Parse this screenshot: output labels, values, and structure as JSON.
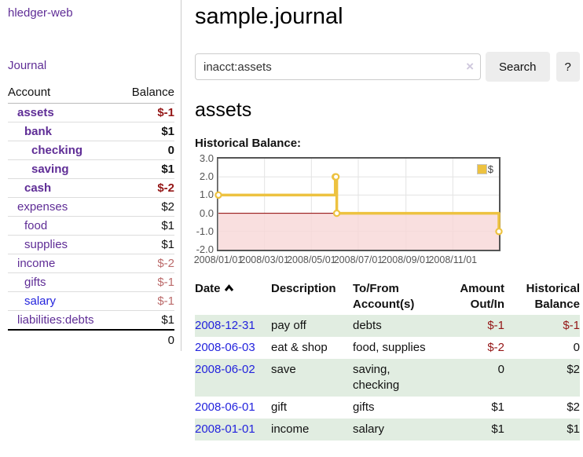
{
  "app": {
    "title": "hledger-web"
  },
  "sidebar": {
    "journal_link": "Journal",
    "headers": {
      "account": "Account",
      "balance": "Balance"
    },
    "rows": [
      {
        "account": "assets",
        "balance": "$-1"
      },
      {
        "account": "bank",
        "balance": "$1"
      },
      {
        "account": "checking",
        "balance": "0"
      },
      {
        "account": "saving",
        "balance": "$1"
      },
      {
        "account": "cash",
        "balance": "$-2"
      },
      {
        "account": "expenses",
        "balance": "$2"
      },
      {
        "account": "food",
        "balance": "$1"
      },
      {
        "account": "supplies",
        "balance": "$1"
      },
      {
        "account": "income",
        "balance": "$-2"
      },
      {
        "account": "gifts",
        "balance": "$-1"
      },
      {
        "account": "salary",
        "balance": "$-1"
      },
      {
        "account": "liabilities:debts",
        "balance": "$1"
      }
    ],
    "total": "0"
  },
  "main": {
    "title": "sample.journal",
    "search": {
      "value": "inacct:assets",
      "clear_icon": "×",
      "button_label": "Search",
      "help_label": "?"
    },
    "account_heading": "assets",
    "chart_heading": "Historical Balance:"
  },
  "chart_data": {
    "type": "line",
    "step": true,
    "title": "Historical Balance",
    "series": [
      {
        "name": "$",
        "color": "#edc240",
        "points": [
          [
            "2008-01-01",
            1
          ],
          [
            "2008-06-01",
            2
          ],
          [
            "2008-06-02",
            2
          ],
          [
            "2008-06-03",
            0
          ],
          [
            "2008-12-31",
            -1
          ]
        ]
      }
    ],
    "ylim": [
      -2,
      3
    ],
    "yticks": [
      {
        "label": "3.0",
        "value": 3
      },
      {
        "label": "2.0",
        "value": 2
      },
      {
        "label": "1.0",
        "value": 1
      },
      {
        "label": "0.0",
        "value": 0
      },
      {
        "label": "-1.0",
        "value": -1
      },
      {
        "label": "-2.0",
        "value": -2
      }
    ],
    "xticks": [
      {
        "label": "2008/01/01",
        "date": "2008-01-01"
      },
      {
        "label": "2008/03/01",
        "date": "2008-03-01"
      },
      {
        "label": "2008/05/01",
        "date": "2008-05-01"
      },
      {
        "label": "2008/07/01",
        "date": "2008-07-01"
      },
      {
        "label": "2008/09/01",
        "date": "2008-09-01"
      },
      {
        "label": "2008/11/01",
        "date": "2008-11-01"
      }
    ],
    "legend": {
      "position": "top-right",
      "label": "$"
    },
    "grid": true,
    "zero_line_color": "#8f0000",
    "negative_region_color": "#f8d7d7"
  },
  "register": {
    "headers": {
      "date": "Date",
      "description": "Description",
      "tofrom": "To/From Account(s)",
      "amount": "Amount Out/In",
      "balance": "Historical Balance"
    },
    "rows": [
      {
        "date": "2008-12-31",
        "description": "pay off",
        "tofrom": "debts",
        "amount": "$-1",
        "balance": "$-1"
      },
      {
        "date": "2008-06-03",
        "description": "eat & shop",
        "tofrom": "food, supplies",
        "amount": "$-2",
        "balance": "0"
      },
      {
        "date": "2008-06-02",
        "description": "save",
        "tofrom": "saving, checking",
        "amount": "0",
        "balance": "$2"
      },
      {
        "date": "2008-06-01",
        "description": "gift",
        "tofrom": "gifts",
        "amount": "$1",
        "balance": "$2"
      },
      {
        "date": "2008-01-01",
        "description": "income",
        "tofrom": "salary",
        "amount": "$1",
        "balance": "$1"
      }
    ]
  }
}
